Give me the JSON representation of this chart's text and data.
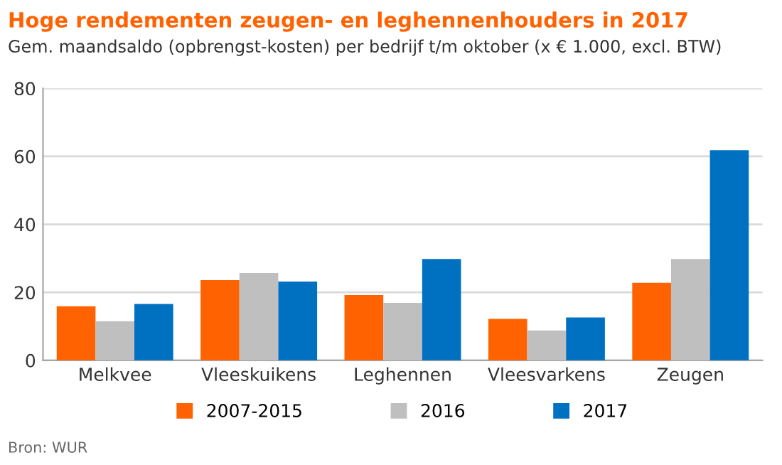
{
  "chart_data": {
    "type": "bar",
    "title": "Hoge rendementen zeugen- en leghennenhouders in 2017",
    "subtitle": "Gem. maandsaldo (opbrengst-kosten) per bedrijf t/m oktober (x € 1.000, excl. BTW)",
    "categories": [
      "Melkvee",
      "Vleeskuikens",
      "Leghennen",
      "Vleesvarkens",
      "Zeugen"
    ],
    "series": [
      {
        "name": "2007-2015",
        "color": "#ff6200",
        "values": [
          15.9,
          23.6,
          19.2,
          12.2,
          22.8
        ]
      },
      {
        "name": "2016",
        "color": "#bfbfbf",
        "values": [
          11.5,
          25.7,
          16.9,
          8.8,
          29.8
        ]
      },
      {
        "name": "2017",
        "color": "#0070c0",
        "values": [
          16.6,
          23.2,
          29.8,
          12.6,
          61.8
        ]
      }
    ],
    "ylim": [
      0,
      80
    ],
    "yticks": [
      0,
      20,
      40,
      60,
      80
    ],
    "grid": "y",
    "legend": "bottom",
    "annotations": [
      "Bron: WUR"
    ]
  }
}
